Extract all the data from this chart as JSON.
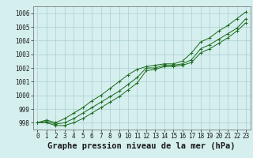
{
  "bg_color": "#d5eeee",
  "grid_color": "#aad0d0",
  "line_color": "#1a6b1a",
  "x_values": [
    0,
    1,
    2,
    3,
    4,
    5,
    6,
    7,
    8,
    9,
    10,
    11,
    12,
    13,
    14,
    15,
    16,
    17,
    18,
    19,
    20,
    21,
    22,
    23
  ],
  "y_main": [
    998.0,
    998.1,
    997.9,
    998.0,
    998.3,
    998.7,
    999.1,
    999.5,
    999.9,
    1000.3,
    1000.8,
    1001.3,
    1002.0,
    1002.0,
    1002.2,
    1002.2,
    1002.3,
    1002.6,
    1003.4,
    1003.7,
    1004.1,
    1004.5,
    1004.9,
    1005.6
  ],
  "y_upper": [
    998.0,
    998.2,
    998.0,
    998.3,
    998.7,
    999.1,
    999.6,
    1000.0,
    1000.5,
    1001.0,
    1001.5,
    1001.9,
    1002.1,
    1002.2,
    1002.3,
    1002.3,
    1002.5,
    1003.1,
    1003.9,
    1004.2,
    1004.7,
    1005.1,
    1005.6,
    1006.1
  ],
  "y_lower": [
    998.0,
    998.0,
    997.8,
    997.8,
    998.0,
    998.3,
    998.7,
    999.1,
    999.5,
    999.9,
    1000.4,
    1000.9,
    1001.8,
    1001.9,
    1002.1,
    1002.1,
    1002.2,
    1002.4,
    1003.1,
    1003.4,
    1003.8,
    1004.2,
    1004.7,
    1005.3
  ],
  "ylim": [
    997.5,
    1006.5
  ],
  "yticks": [
    998,
    999,
    1000,
    1001,
    1002,
    1003,
    1004,
    1005,
    1006
  ],
  "xlim": [
    -0.5,
    23.5
  ],
  "xticks": [
    0,
    1,
    2,
    3,
    4,
    5,
    6,
    7,
    8,
    9,
    10,
    11,
    12,
    13,
    14,
    15,
    16,
    17,
    18,
    19,
    20,
    21,
    22,
    23
  ],
  "xlabel": "Graphe pression niveau de la mer (hPa)",
  "tick_fontsize": 5.5,
  "xlabel_fontsize": 7.5
}
